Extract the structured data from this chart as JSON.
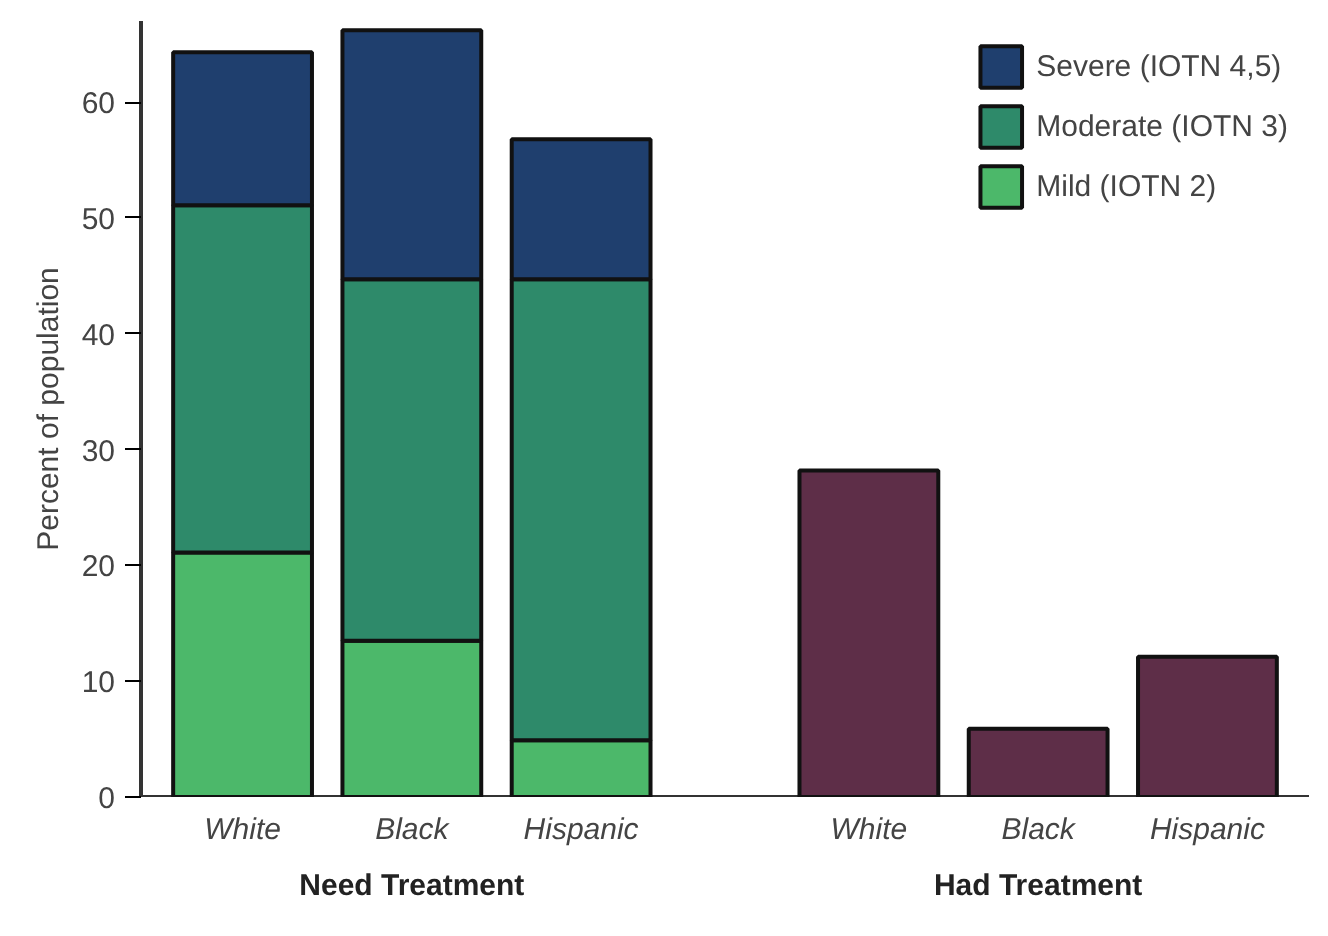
{
  "chart_data": {
    "type": "bar",
    "stacked": true,
    "ylabel": "Percent of population",
    "categories": [
      "White",
      "Black",
      "Hispanic",
      "White",
      "Black",
      "Hispanic"
    ],
    "annotations": [
      "Need Treatment",
      "Had Treatment"
    ],
    "series": [
      {
        "name": "Mild (IOTN 2)",
        "color": "#4cb86a",
        "values": [
          21.1,
          13.5,
          4.9,
          null,
          null,
          null
        ]
      },
      {
        "name": "Moderate (IOTN 3)",
        "color": "#2e8a6a",
        "values": [
          30.0,
          31.2,
          39.8,
          null,
          null,
          null
        ]
      },
      {
        "name": "Severe (IOTN 4,5)",
        "color": "#1f3f6e",
        "values": [
          13.2,
          21.5,
          12.1,
          null,
          null,
          null
        ]
      },
      {
        "color": "#5e2e48",
        "values": [
          null,
          null,
          null,
          28.2,
          5.9,
          12.1
        ]
      }
    ],
    "ylim": [
      0,
      67
    ],
    "yticks": [
      0,
      10,
      20,
      30,
      40,
      50,
      60
    ],
    "grid": false,
    "legend": "top right"
  }
}
